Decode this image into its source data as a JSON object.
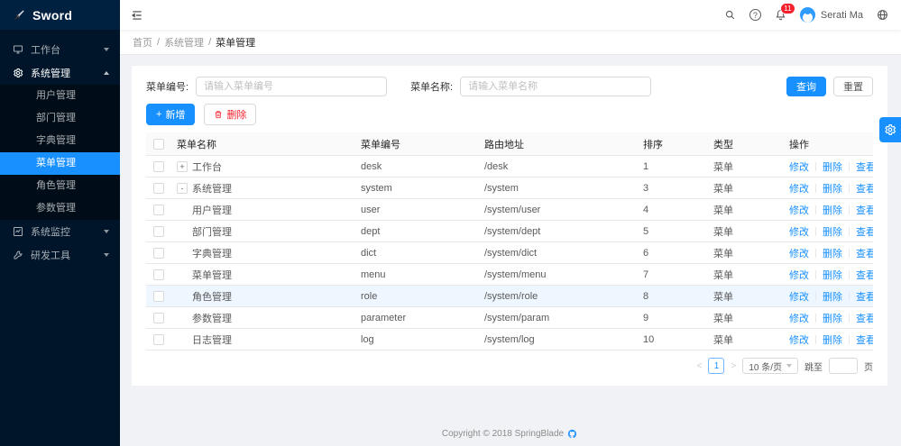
{
  "app": {
    "logo_text": "Sword"
  },
  "colors": {
    "accent": "#1890ff",
    "sidebar_bg": "#001529",
    "sidebar_sub_bg": "#000c17",
    "badge": "#f5222d",
    "row_highlight": "#eef7ff"
  },
  "icons": {
    "logo": "sword-icon",
    "collapse": "menu-fold-icon",
    "search": "magnifier",
    "help": "question-circle",
    "notifications": "bell",
    "language": "globe",
    "workbench": "desktop",
    "system": "gear",
    "monitor": "chart-square",
    "devtools": "wrench",
    "add": "plus",
    "delete": "trash",
    "settings_panel": "gear",
    "github": "octocat"
  },
  "sidebar": {
    "items": [
      {
        "label": "工作台",
        "state": "collapsed"
      },
      {
        "label": "系统管理",
        "state": "expanded",
        "children": [
          "用户管理",
          "部门管理",
          "字典管理",
          "菜单管理",
          "角色管理",
          "参数管理"
        ],
        "active_child": "菜单管理"
      },
      {
        "label": "系统监控",
        "state": "collapsed"
      },
      {
        "label": "研发工具",
        "state": "collapsed"
      }
    ]
  },
  "header": {
    "badge_count": "11",
    "user_name": "Serati Ma"
  },
  "breadcrumb": {
    "items": [
      "首页",
      "系统管理",
      "菜单管理"
    ],
    "separator": "/"
  },
  "filters": {
    "menu_code_label": "菜单编号:",
    "menu_code_placeholder": "请输入菜单编号",
    "menu_name_label": "菜单名称:",
    "menu_name_placeholder": "请输入菜单名称",
    "search_button": "查询",
    "reset_button": "重置",
    "add_button": "新增",
    "delete_button": "删除"
  },
  "table": {
    "columns": [
      "菜单名称",
      "菜单编号",
      "路由地址",
      "排序",
      "类型",
      "操作"
    ],
    "actions": [
      "修改",
      "删除",
      "查看"
    ],
    "rows": [
      {
        "name": "工作台",
        "code": "desk",
        "path": "/desk",
        "sort": "1",
        "type": "菜单",
        "level": 0,
        "expander": "+"
      },
      {
        "name": "系统管理",
        "code": "system",
        "path": "/system",
        "sort": "3",
        "type": "菜单",
        "level": 0,
        "expander": "-"
      },
      {
        "name": "用户管理",
        "code": "user",
        "path": "/system/user",
        "sort": "4",
        "type": "菜单",
        "level": 1
      },
      {
        "name": "部门管理",
        "code": "dept",
        "path": "/system/dept",
        "sort": "5",
        "type": "菜单",
        "level": 1
      },
      {
        "name": "字典管理",
        "code": "dict",
        "path": "/system/dict",
        "sort": "6",
        "type": "菜单",
        "level": 1
      },
      {
        "name": "菜单管理",
        "code": "menu",
        "path": "/system/menu",
        "sort": "7",
        "type": "菜单",
        "level": 1
      },
      {
        "name": "角色管理",
        "code": "role",
        "path": "/system/role",
        "sort": "8",
        "type": "菜单",
        "level": 1,
        "highlight": true
      },
      {
        "name": "参数管理",
        "code": "parameter",
        "path": "/system/param",
        "sort": "9",
        "type": "菜单",
        "level": 1
      },
      {
        "name": "日志管理",
        "code": "log",
        "path": "/system/log",
        "sort": "10",
        "type": "菜单",
        "level": 1
      }
    ]
  },
  "pagination": {
    "prev": "<",
    "current_page": "1",
    "next": ">",
    "page_size": "10 条/页",
    "jump_label": "跳至",
    "page_suffix": "页"
  },
  "footer": {
    "copyright": "Copyright © 2018 SpringBlade"
  }
}
